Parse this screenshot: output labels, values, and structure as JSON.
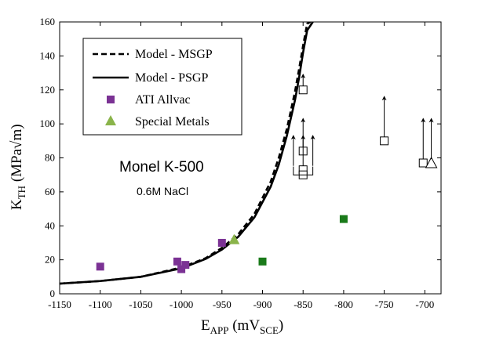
{
  "chart_data": {
    "type": "scatter",
    "xlabel": {
      "main": "E",
      "sub": "APP",
      "rest": " (mV",
      "sub2": "SCE",
      "end": ")"
    },
    "ylabel": {
      "main": "K",
      "sub": "TH",
      "rest": " (MPa√m)"
    },
    "xlim": [
      -1150,
      -680
    ],
    "ylim": [
      0,
      160
    ],
    "xticks": [
      -1150,
      -1100,
      -1050,
      -1000,
      -950,
      -900,
      -850,
      -800,
      -750,
      -700
    ],
    "yticks": [
      0,
      20,
      40,
      60,
      80,
      100,
      120,
      140,
      160
    ],
    "legend_position": "top-left",
    "annotations": {
      "alloy": "Monel K-500",
      "environment": "0.6M NaCl"
    },
    "series": [
      {
        "name": "Model - MSGP",
        "kind": "line",
        "style": "dashed",
        "x": [
          -1150,
          -1100,
          -1050,
          -1000,
          -970,
          -950,
          -930,
          -910,
          -890,
          -880,
          -870,
          -860,
          -855,
          -850,
          -845,
          -841
        ],
        "y": [
          6,
          7.5,
          10,
          15.5,
          21,
          27,
          35,
          47,
          66,
          80,
          97,
          119,
          132,
          146,
          159,
          160
        ]
      },
      {
        "name": "Model - PSGP",
        "kind": "line",
        "style": "solid",
        "x": [
          -1150,
          -1100,
          -1050,
          -1000,
          -970,
          -950,
          -930,
          -910,
          -890,
          -880,
          -870,
          -860,
          -855,
          -850,
          -845,
          -838
        ],
        "y": [
          6,
          7.5,
          10,
          15,
          20.5,
          26,
          33.5,
          45,
          63,
          76,
          93,
          114,
          127,
          142,
          155,
          160
        ]
      },
      {
        "name": "ATI Allvac",
        "kind": "scatter",
        "marker": "square",
        "color": "#7b3294",
        "x": [
          -1100,
          -1005,
          -1000,
          -995,
          -950
        ],
        "y": [
          16,
          19,
          14.5,
          17,
          30
        ]
      },
      {
        "name": "Special Metals",
        "kind": "scatter",
        "marker": "triangle",
        "color": "#8ab44a",
        "x": [
          -935
        ],
        "y": [
          32
        ]
      },
      {
        "kind": "scatter",
        "marker": "square",
        "color": "#1a7a1a",
        "x": [
          -900,
          -800
        ],
        "y": [
          19,
          44
        ]
      },
      {
        "kind": "scatter",
        "marker": "open-square",
        "color": "#000000",
        "x": [
          -850,
          -850,
          -850,
          -850,
          -750,
          -702
        ],
        "y": [
          120,
          84,
          73,
          70,
          90,
          77
        ]
      },
      {
        "kind": "scatter",
        "marker": "open-triangle",
        "color": "#000000",
        "x": [
          -692
        ],
        "y": [
          77
        ]
      }
    ],
    "runouts": [
      {
        "x": -850,
        "from": 120,
        "to": 129
      },
      {
        "x": -850,
        "from": 84,
        "to": 103
      },
      {
        "x": -850,
        "from": 73,
        "to": 93
      },
      {
        "x": -862,
        "from": 73,
        "to": 93
      },
      {
        "x": -838,
        "from": 73,
        "to": 93
      },
      {
        "x": -750,
        "from": 90,
        "to": 116
      },
      {
        "x": -702,
        "from": 77,
        "to": 103
      },
      {
        "x": -692,
        "from": 77,
        "to": 103
      }
    ]
  }
}
